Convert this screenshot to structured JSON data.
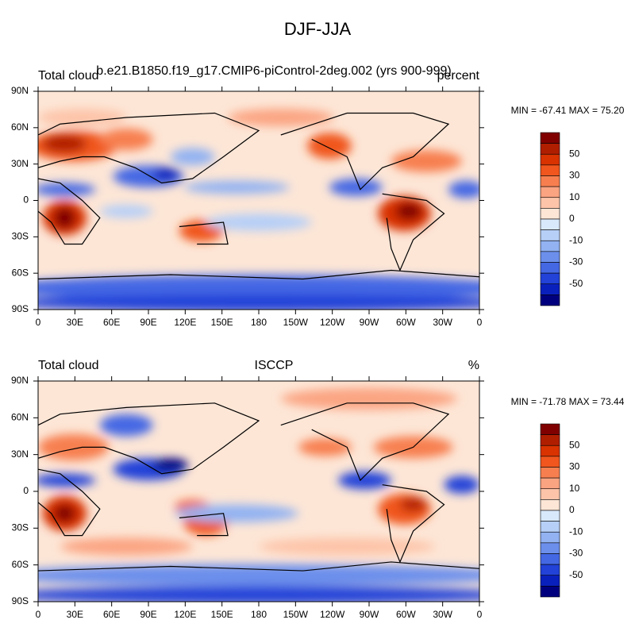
{
  "title": "DJF-JJA",
  "colorbar_colors": [
    "#800000",
    "#b01e00",
    "#d83300",
    "#f0561e",
    "#f77f4f",
    "#fba482",
    "#fdc4a9",
    "#fde6d6",
    "#d8e9fb",
    "#b6cff7",
    "#92b2f2",
    "#6c8fec",
    "#4468e4",
    "#2242d8",
    "#0a20bd",
    "#00007f"
  ],
  "panels": [
    {
      "left_title": "Total cloud",
      "center_title": "b.e21.B1850.f19_g17.CMIP6-piControl-2deg.002 (yrs 900-999)",
      "right_title": "percent",
      "stats": "MIN = -67.41 MAX =  75.20",
      "colorbar_labels": [
        "50",
        "30",
        "10",
        "0",
        "-10",
        "-30",
        "-50"
      ],
      "xticks": [
        "0",
        "30E",
        "60E",
        "90E",
        "120E",
        "150E",
        "180",
        "150W",
        "120W",
        "90W",
        "60W",
        "30W",
        "0"
      ],
      "yticks": [
        "90N",
        "60N",
        "30N",
        "0",
        "30S",
        "60S",
        "90S"
      ]
    },
    {
      "left_title": "Total cloud",
      "center_title": "ISCCP",
      "right_title": "%",
      "stats": "MIN = -71.78 MAX =  73.44",
      "colorbar_labels": [
        "50",
        "30",
        "10",
        "0",
        "-10",
        "-30",
        "-50"
      ],
      "xticks": [
        "0",
        "30E",
        "60E",
        "90E",
        "120E",
        "150E",
        "180",
        "150W",
        "120W",
        "90W",
        "60W",
        "30W",
        "0"
      ],
      "yticks": [
        "90N",
        "60N",
        "30N",
        "0",
        "30S",
        "60S",
        "90S"
      ]
    }
  ]
}
